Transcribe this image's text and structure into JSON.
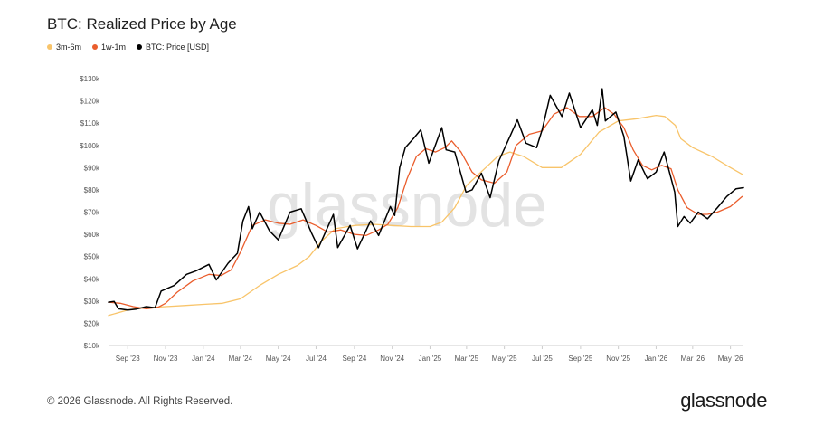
{
  "page": {
    "footer": "© 2026 Glassnode. All Rights Reserved.",
    "brand": "glassnode",
    "watermark": "glassnode"
  },
  "chart_data": {
    "type": "line",
    "title": "BTC: Realized Price by Age",
    "xlabel": "",
    "ylabel": "",
    "ylim": [
      10000,
      130000
    ],
    "grid": false,
    "legend_position": "top-left",
    "x_ticks": [
      "Sep '23",
      "Nov '23",
      "Jan '24",
      "Mar '24",
      "May '24",
      "Jul '24",
      "Sep '24",
      "Nov '24",
      "Jan '25",
      "Mar '25",
      "May '25",
      "Jul '25",
      "Sep '25",
      "Nov '25",
      "Jan '26",
      "Mar '26",
      "May '26"
    ],
    "y_ticks": [
      "$10k",
      "$20k",
      "$30k",
      "$40k",
      "$50k",
      "$60k",
      "$70k",
      "$80k",
      "$90k",
      "$100k",
      "$110k",
      "$120k",
      "$130k"
    ],
    "series": [
      {
        "name": "3m-6m",
        "color": "#f8c46a",
        "points": [
          [
            "2023-08-01",
            23500
          ],
          [
            "2023-09-01",
            26000
          ],
          [
            "2023-10-01",
            27000
          ],
          [
            "2023-11-01",
            27500
          ],
          [
            "2023-12-01",
            28000
          ],
          [
            "2024-01-01",
            28500
          ],
          [
            "2024-02-01",
            29000
          ],
          [
            "2024-03-01",
            31000
          ],
          [
            "2024-04-01",
            37000
          ],
          [
            "2024-05-01",
            42000
          ],
          [
            "2024-06-01",
            46000
          ],
          [
            "2024-06-20",
            50000
          ],
          [
            "2024-07-10",
            57000
          ],
          [
            "2024-08-01",
            62500
          ],
          [
            "2024-09-01",
            64000
          ],
          [
            "2024-10-01",
            64500
          ],
          [
            "2024-11-01",
            64000
          ],
          [
            "2024-12-01",
            63500
          ],
          [
            "2025-01-01",
            63500
          ],
          [
            "2025-01-20",
            65500
          ],
          [
            "2025-02-10",
            72000
          ],
          [
            "2025-03-01",
            82000
          ],
          [
            "2025-04-01",
            90000
          ],
          [
            "2025-04-20",
            95000
          ],
          [
            "2025-05-10",
            97000
          ],
          [
            "2025-06-01",
            95000
          ],
          [
            "2025-07-01",
            90000
          ],
          [
            "2025-08-01",
            90000
          ],
          [
            "2025-09-01",
            96000
          ],
          [
            "2025-10-01",
            106000
          ],
          [
            "2025-11-01",
            111000
          ],
          [
            "2025-12-01",
            112000
          ],
          [
            "2026-01-01",
            113500
          ],
          [
            "2026-01-15",
            113000
          ],
          [
            "2026-02-01",
            109000
          ],
          [
            "2026-02-10",
            103000
          ],
          [
            "2026-03-01",
            99000
          ],
          [
            "2026-04-01",
            95000
          ],
          [
            "2026-05-01",
            90000
          ],
          [
            "2026-05-20",
            87000
          ]
        ]
      },
      {
        "name": "1w-1m",
        "color": "#ea5d2c",
        "points": [
          [
            "2023-08-01",
            29500
          ],
          [
            "2023-08-20",
            29000
          ],
          [
            "2023-09-10",
            27500
          ],
          [
            "2023-10-01",
            26500
          ],
          [
            "2023-10-20",
            27200
          ],
          [
            "2023-11-01",
            29000
          ],
          [
            "2023-11-20",
            34000
          ],
          [
            "2023-12-15",
            39000
          ],
          [
            "2024-01-10",
            42000
          ],
          [
            "2024-01-30",
            41500
          ],
          [
            "2024-02-15",
            44000
          ],
          [
            "2024-03-01",
            52000
          ],
          [
            "2024-03-20",
            64000
          ],
          [
            "2024-04-10",
            66500
          ],
          [
            "2024-05-01",
            65000
          ],
          [
            "2024-05-20",
            64500
          ],
          [
            "2024-06-10",
            66500
          ],
          [
            "2024-07-01",
            64000
          ],
          [
            "2024-07-20",
            61000
          ],
          [
            "2024-08-10",
            62000
          ],
          [
            "2024-09-01",
            60000
          ],
          [
            "2024-09-20",
            59500
          ],
          [
            "2024-10-10",
            62000
          ],
          [
            "2024-10-25",
            64500
          ],
          [
            "2024-11-10",
            72000
          ],
          [
            "2024-11-25",
            85000
          ],
          [
            "2024-12-10",
            95000
          ],
          [
            "2024-12-25",
            98500
          ],
          [
            "2025-01-10",
            97000
          ],
          [
            "2025-01-25",
            99000
          ],
          [
            "2025-02-05",
            102000
          ],
          [
            "2025-02-20",
            97000
          ],
          [
            "2025-03-10",
            88000
          ],
          [
            "2025-03-25",
            84500
          ],
          [
            "2025-04-15",
            83000
          ],
          [
            "2025-05-05",
            88000
          ],
          [
            "2025-05-20",
            100000
          ],
          [
            "2025-06-10",
            105000
          ],
          [
            "2025-07-01",
            106500
          ],
          [
            "2025-07-20",
            114000
          ],
          [
            "2025-08-10",
            117000
          ],
          [
            "2025-08-30",
            113000
          ],
          [
            "2025-09-20",
            113000
          ],
          [
            "2025-10-10",
            117000
          ],
          [
            "2025-10-25",
            114000
          ],
          [
            "2025-11-10",
            108000
          ],
          [
            "2025-11-25",
            98000
          ],
          [
            "2025-12-10",
            91000
          ],
          [
            "2025-12-25",
            89000
          ],
          [
            "2026-01-10",
            91000
          ],
          [
            "2026-01-25",
            89500
          ],
          [
            "2026-02-05",
            80000
          ],
          [
            "2026-02-20",
            72000
          ],
          [
            "2026-03-10",
            69000
          ],
          [
            "2026-03-25",
            69000
          ],
          [
            "2026-04-10",
            70000
          ],
          [
            "2026-05-01",
            72500
          ],
          [
            "2026-05-20",
            77000
          ]
        ]
      },
      {
        "name": "BTC: Price [USD]",
        "color": "#000000",
        "points": [
          [
            "2023-08-01",
            29500
          ],
          [
            "2023-08-10",
            29800
          ],
          [
            "2023-08-17",
            26500
          ],
          [
            "2023-09-01",
            26000
          ],
          [
            "2023-09-15",
            26400
          ],
          [
            "2023-10-01",
            27500
          ],
          [
            "2023-10-15",
            27000
          ],
          [
            "2023-10-25",
            34500
          ],
          [
            "2023-11-15",
            37000
          ],
          [
            "2023-12-05",
            42000
          ],
          [
            "2023-12-20",
            43500
          ],
          [
            "2024-01-10",
            46500
          ],
          [
            "2024-01-22",
            39500
          ],
          [
            "2024-02-10",
            47000
          ],
          [
            "2024-02-25",
            51500
          ],
          [
            "2024-03-05",
            66000
          ],
          [
            "2024-03-14",
            72500
          ],
          [
            "2024-03-20",
            62500
          ],
          [
            "2024-04-01",
            70000
          ],
          [
            "2024-04-17",
            61500
          ],
          [
            "2024-05-01",
            57500
          ],
          [
            "2024-05-20",
            70000
          ],
          [
            "2024-06-07",
            71500
          ],
          [
            "2024-06-24",
            60500
          ],
          [
            "2024-07-05",
            54000
          ],
          [
            "2024-07-29",
            69000
          ],
          [
            "2024-08-05",
            54000
          ],
          [
            "2024-08-25",
            64000
          ],
          [
            "2024-09-06",
            53500
          ],
          [
            "2024-09-27",
            66000
          ],
          [
            "2024-10-10",
            59500
          ],
          [
            "2024-10-29",
            72500
          ],
          [
            "2024-11-05",
            68500
          ],
          [
            "2024-11-13",
            90000
          ],
          [
            "2024-11-22",
            99000
          ],
          [
            "2024-12-05",
            103000
          ],
          [
            "2024-12-17",
            107000
          ],
          [
            "2024-12-30",
            92000
          ],
          [
            "2025-01-20",
            108000
          ],
          [
            "2025-01-27",
            98000
          ],
          [
            "2025-02-10",
            97000
          ],
          [
            "2025-02-28",
            79000
          ],
          [
            "2025-03-10",
            80000
          ],
          [
            "2025-03-25",
            87500
          ],
          [
            "2025-04-08",
            76500
          ],
          [
            "2025-04-22",
            93000
          ],
          [
            "2025-05-10",
            104000
          ],
          [
            "2025-05-22",
            111500
          ],
          [
            "2025-06-05",
            101000
          ],
          [
            "2025-06-22",
            99000
          ],
          [
            "2025-07-01",
            107000
          ],
          [
            "2025-07-14",
            122500
          ],
          [
            "2025-08-02",
            113000
          ],
          [
            "2025-08-14",
            123500
          ],
          [
            "2025-09-01",
            108000
          ],
          [
            "2025-09-20",
            116000
          ],
          [
            "2025-09-28",
            109000
          ],
          [
            "2025-10-06",
            125500
          ],
          [
            "2025-10-11",
            111000
          ],
          [
            "2025-10-28",
            115000
          ],
          [
            "2025-11-10",
            104000
          ],
          [
            "2025-11-21",
            84000
          ],
          [
            "2025-12-03",
            93500
          ],
          [
            "2025-12-18",
            85000
          ],
          [
            "2026-01-01",
            88000
          ],
          [
            "2026-01-14",
            97000
          ],
          [
            "2026-01-31",
            79000
          ],
          [
            "2026-02-05",
            63500
          ],
          [
            "2026-02-15",
            68000
          ],
          [
            "2026-02-25",
            65000
          ],
          [
            "2026-03-10",
            70000
          ],
          [
            "2026-03-25",
            67000
          ],
          [
            "2026-04-10",
            72000
          ],
          [
            "2026-04-25",
            77000
          ],
          [
            "2026-05-10",
            80500
          ],
          [
            "2026-05-22",
            81000
          ]
        ]
      }
    ]
  }
}
